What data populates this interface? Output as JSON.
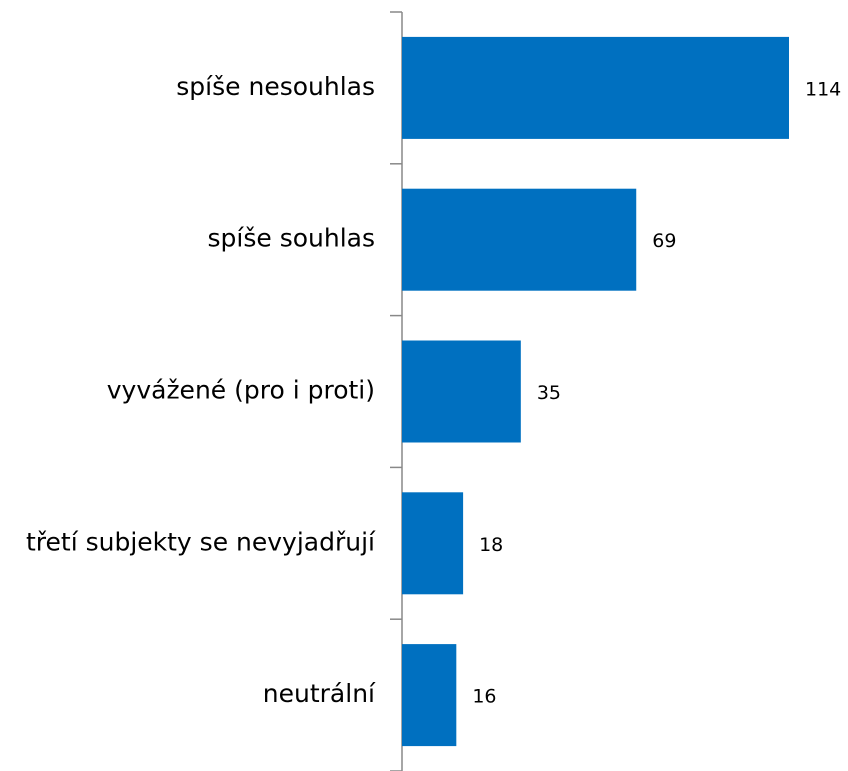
{
  "chart_data": {
    "type": "barh",
    "categories": [
      "spíše nesouhlas",
      "spíše souhlas",
      "vyvážené (pro i proti)",
      "třetí subjekty se nevyjadřují",
      "neutrální"
    ],
    "values": [
      114,
      69,
      35,
      18,
      16
    ],
    "color": "#0070c0"
  }
}
